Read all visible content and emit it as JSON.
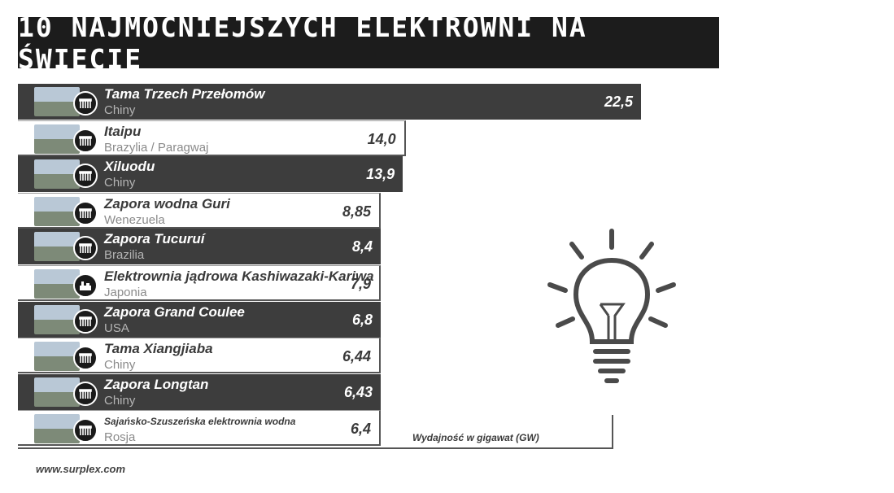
{
  "title": "10 NAJMOCNIEJSZYCH ELEKTROWNI NA ŚWIECIE",
  "unit_label": "Wydajność w gigawat (GW)",
  "source": "www.surplex.com",
  "icons": {
    "hydro": "dam-icon",
    "nuclear": "nuclear-plant-icon",
    "decoration": "lightbulb-icon"
  },
  "colors": {
    "dark_bar": "#3d3d3d",
    "title_bg": "#1c1c1c",
    "text_dark": "#3a3a3a"
  },
  "chart_data": {
    "type": "bar",
    "orientation": "horizontal",
    "title": "10 NAJMOCNIEJSZYCH ELEKTROWNI NA ŚWIECIE",
    "xlabel": "Wydajność w gigawat (GW)",
    "ylabel": "",
    "categories": [
      "Tama Trzech Przełomów",
      "Itaipu",
      "Xiluodu",
      "Zapora wodna Guri",
      "Zapora Tucuruí",
      "Elektrownia jądrowa Kashiwazaki-Kariwa",
      "Zapora Grand Coulee",
      "Tama Xiangjiaba",
      "Zapora Longtan",
      "Sajańsko-Szuszeńska elektrownia wodna"
    ],
    "countries": [
      "Chiny",
      "Brazylia / Paragwaj",
      "Chiny",
      "Wenezuela",
      "Brazilia",
      "Japonia",
      "USA",
      "Chiny",
      "Chiny",
      "Rosja"
    ],
    "values": [
      22.5,
      14.0,
      13.9,
      8.85,
      8.4,
      7.9,
      6.8,
      6.44,
      6.43,
      6.4
    ],
    "value_labels": [
      "22,5",
      "14,0",
      "13,9",
      "8,85",
      "8,4",
      "7,9",
      "6,8",
      "6,44",
      "6,43",
      "6,4"
    ],
    "types": [
      "hydro",
      "hydro",
      "hydro",
      "hydro",
      "hydro",
      "nuclear",
      "hydro",
      "hydro",
      "hydro",
      "hydro"
    ]
  }
}
